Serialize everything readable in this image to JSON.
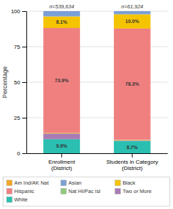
{
  "chart_data": {
    "type": "bar",
    "stacked": true,
    "categories": [
      "Enrollment\n(District)",
      "Students in Category\n(District)"
    ],
    "annotations": [
      "n=539,634",
      "n=61,924"
    ],
    "series": [
      {
        "name": "White",
        "color": "#2ABFB0",
        "values": [
          9.9,
          8.7
        ],
        "value_labels": [
          "9.9%",
          "8.7%"
        ]
      },
      {
        "name": "Two or More",
        "color": "#A97BB5",
        "values": [
          3.8,
          0.3
        ]
      },
      {
        "name": "Am Ind/AK Nat",
        "color": "#F5A623",
        "values": [
          0.4,
          0.3
        ]
      },
      {
        "name": "Nat HI/Pac Isl",
        "color": "#90C97A",
        "values": [
          0.2,
          0.2
        ]
      },
      {
        "name": "Hispanic",
        "color": "#F08080",
        "values": [
          73.9,
          78.3
        ],
        "value_labels": [
          "73.9%",
          "78.3%"
        ]
      },
      {
        "name": "Black",
        "color": "#F5C400",
        "values": [
          8.1,
          10.0
        ],
        "value_labels": [
          "8.1%",
          "10.0%"
        ]
      },
      {
        "name": "Asian",
        "color": "#7B9FD4",
        "values": [
          3.7,
          2.2
        ]
      }
    ],
    "data_labels": true,
    "ylabel": "Percentage",
    "ylim": [
      0,
      100
    ],
    "yticks": [
      0,
      25,
      50,
      75,
      100
    ],
    "grid": true,
    "legend": "bottom"
  }
}
